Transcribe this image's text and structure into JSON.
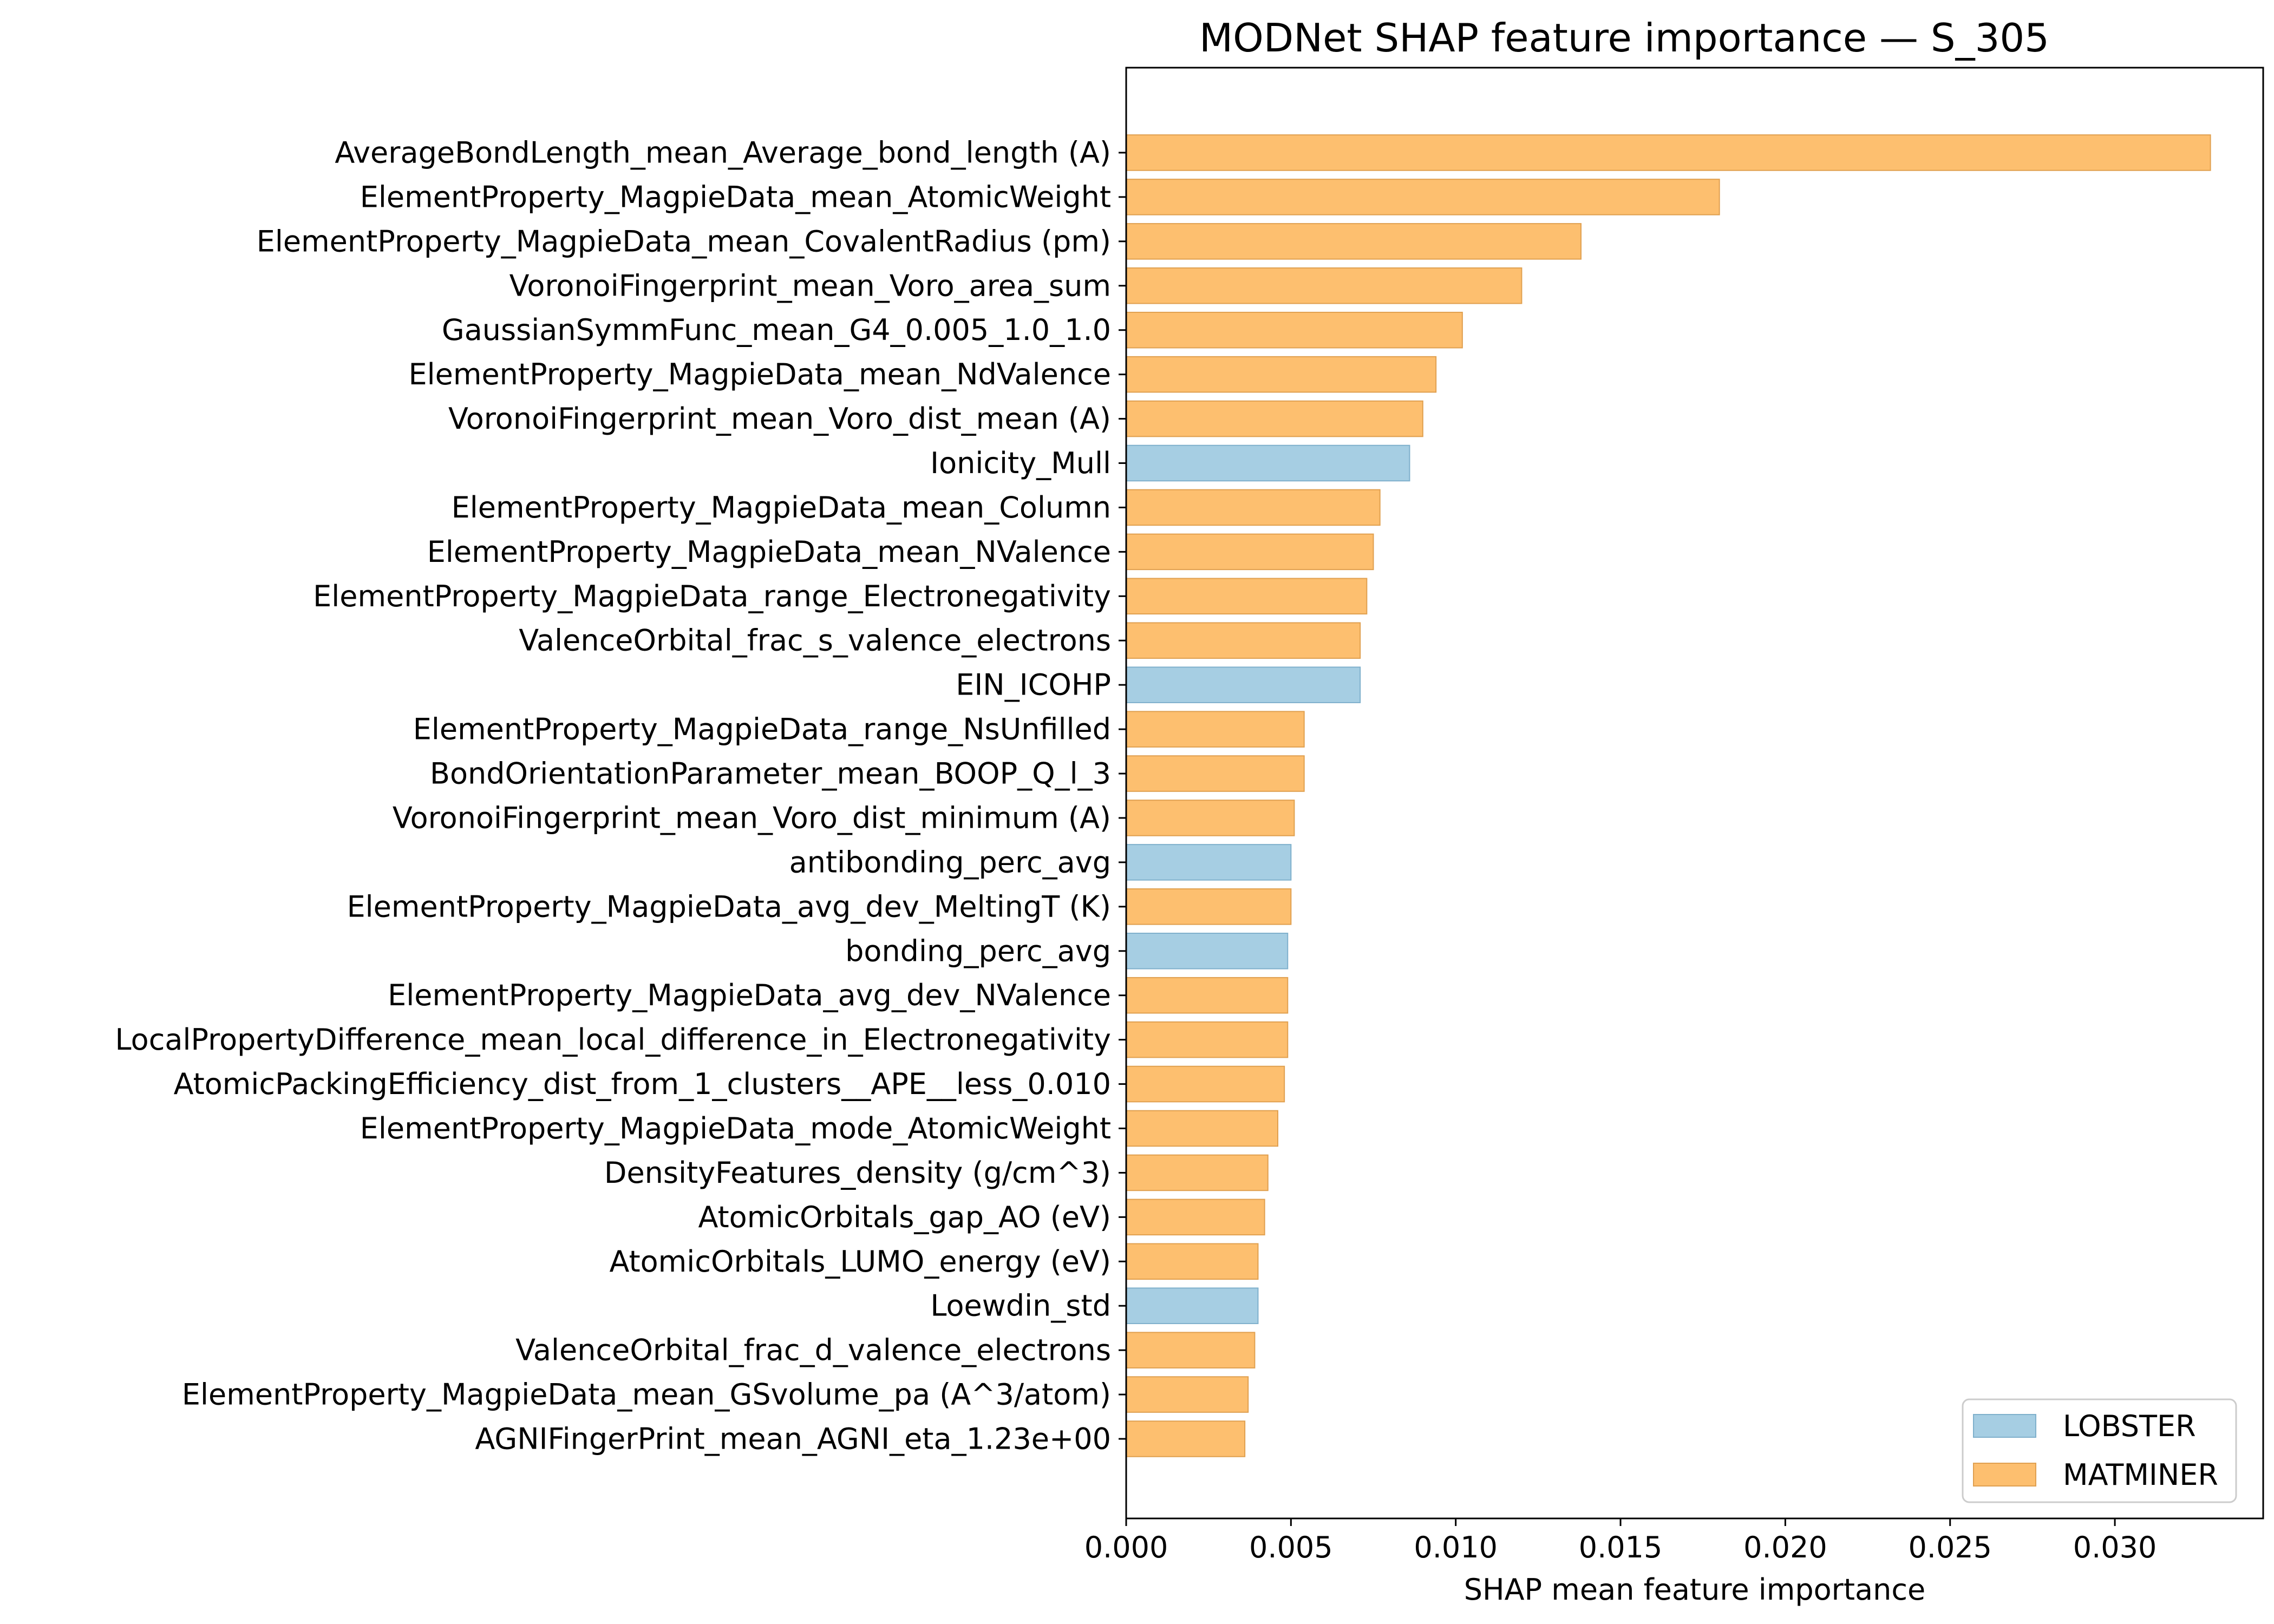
{
  "colors": {
    "LOBSTER": "#a6cee3",
    "MATMINER": "#fdbf6f",
    "LOBSTER_edge": "#7fb0cc",
    "MATMINER_edge": "#e0a050"
  },
  "chart_data": {
    "type": "bar",
    "orientation": "horizontal",
    "title": "MODNet SHAP feature importance — S_305",
    "xlabel": "SHAP mean feature importance",
    "ylabel": "",
    "xlim": [
      0,
      0.0345
    ],
    "xticks": [
      "0.000",
      "0.005",
      "0.010",
      "0.015",
      "0.020",
      "0.025",
      "0.030"
    ],
    "grid": false,
    "legend": {
      "position": "bottom-right",
      "entries": [
        {
          "label": "LOBSTER",
          "group": "LOBSTER"
        },
        {
          "label": "MATMINER",
          "group": "MATMINER"
        }
      ]
    },
    "bars": [
      {
        "label": "AverageBondLength_mean_Average_bond_length (A)",
        "value": 0.0329,
        "group": "MATMINER"
      },
      {
        "label": "ElementProperty_MagpieData_mean_AtomicWeight",
        "value": 0.018,
        "group": "MATMINER"
      },
      {
        "label": "ElementProperty_MagpieData_mean_CovalentRadius (pm)",
        "value": 0.0138,
        "group": "MATMINER"
      },
      {
        "label": "VoronoiFingerprint_mean_Voro_area_sum",
        "value": 0.012,
        "group": "MATMINER"
      },
      {
        "label": "GaussianSymmFunc_mean_G4_0.005_1.0_1.0",
        "value": 0.0102,
        "group": "MATMINER"
      },
      {
        "label": "ElementProperty_MagpieData_mean_NdValence",
        "value": 0.0094,
        "group": "MATMINER"
      },
      {
        "label": "VoronoiFingerprint_mean_Voro_dist_mean (A)",
        "value": 0.009,
        "group": "MATMINER"
      },
      {
        "label": "Ionicity_Mull",
        "value": 0.0086,
        "group": "LOBSTER"
      },
      {
        "label": "ElementProperty_MagpieData_mean_Column",
        "value": 0.0077,
        "group": "MATMINER"
      },
      {
        "label": "ElementProperty_MagpieData_mean_NValence",
        "value": 0.0075,
        "group": "MATMINER"
      },
      {
        "label": "ElementProperty_MagpieData_range_Electronegativity",
        "value": 0.0073,
        "group": "MATMINER"
      },
      {
        "label": "ValenceOrbital_frac_s_valence_electrons",
        "value": 0.0071,
        "group": "MATMINER"
      },
      {
        "label": "EIN_ICOHP",
        "value": 0.0071,
        "group": "LOBSTER"
      },
      {
        "label": "ElementProperty_MagpieData_range_NsUnfilled",
        "value": 0.0054,
        "group": "MATMINER"
      },
      {
        "label": "BondOrientationParameter_mean_BOOP_Q_l_3",
        "value": 0.0054,
        "group": "MATMINER"
      },
      {
        "label": "VoronoiFingerprint_mean_Voro_dist_minimum (A)",
        "value": 0.0051,
        "group": "MATMINER"
      },
      {
        "label": "antibonding_perc_avg",
        "value": 0.005,
        "group": "LOBSTER"
      },
      {
        "label": "ElementProperty_MagpieData_avg_dev_MeltingT (K)",
        "value": 0.005,
        "group": "MATMINER"
      },
      {
        "label": "bonding_perc_avg",
        "value": 0.0049,
        "group": "LOBSTER"
      },
      {
        "label": "ElementProperty_MagpieData_avg_dev_NValence",
        "value": 0.0049,
        "group": "MATMINER"
      },
      {
        "label": "LocalPropertyDifference_mean_local_difference_in_Electronegativity",
        "value": 0.0049,
        "group": "MATMINER"
      },
      {
        "label": "AtomicPackingEfficiency_dist_from_1_clusters__APE__less_0.010",
        "value": 0.0048,
        "group": "MATMINER"
      },
      {
        "label": "ElementProperty_MagpieData_mode_AtomicWeight",
        "value": 0.0046,
        "group": "MATMINER"
      },
      {
        "label": "DensityFeatures_density (g/cm^3)",
        "value": 0.0043,
        "group": "MATMINER"
      },
      {
        "label": "AtomicOrbitals_gap_AO (eV)",
        "value": 0.0042,
        "group": "MATMINER"
      },
      {
        "label": "AtomicOrbitals_LUMO_energy (eV)",
        "value": 0.004,
        "group": "MATMINER"
      },
      {
        "label": "Loewdin_std",
        "value": 0.004,
        "group": "LOBSTER"
      },
      {
        "label": "ValenceOrbital_frac_d_valence_electrons",
        "value": 0.0039,
        "group": "MATMINER"
      },
      {
        "label": "ElementProperty_MagpieData_mean_GSvolume_pa (A^3/atom)",
        "value": 0.0037,
        "group": "MATMINER"
      },
      {
        "label": "AGNIFingerPrint_mean_AGNI_eta_1.23e+00",
        "value": 0.0036,
        "group": "MATMINER"
      }
    ]
  }
}
